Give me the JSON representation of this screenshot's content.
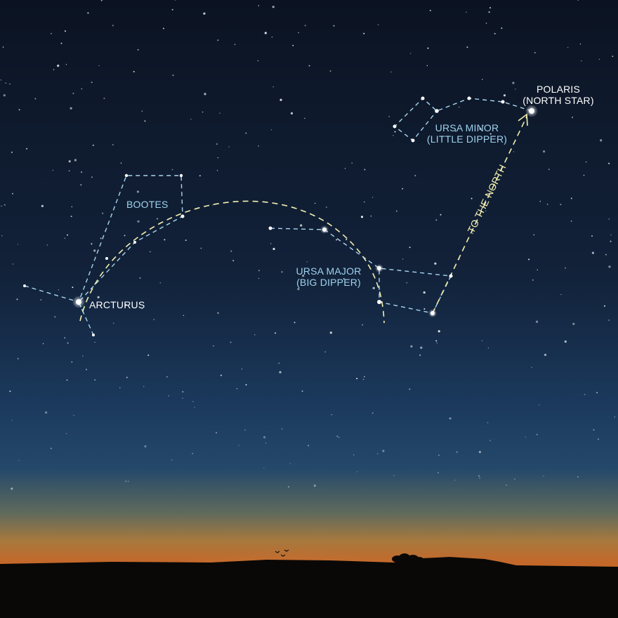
{
  "labels": {
    "bootes": "BOOTES",
    "arcturus": "ARCTURUS",
    "ursa_major": "URSA MAJOR",
    "big_dipper": "(BIG DIPPER)",
    "ursa_minor": "URSA MINOR",
    "little_dipper": "(LITTLE DIPPER)",
    "polaris": "POLARIS",
    "north_star": "(NORTH STAR)",
    "to_the_north": "TO THE NORTH"
  },
  "colors": {
    "constellation_line": "#a8d6f0",
    "guide_line": "#f3f0b0",
    "star": "#ffffff",
    "sky_top": "#0c1424",
    "sky_mid": "#1c3d63",
    "horizon_glow": "#c07a38",
    "ground": "#0a0806"
  }
}
